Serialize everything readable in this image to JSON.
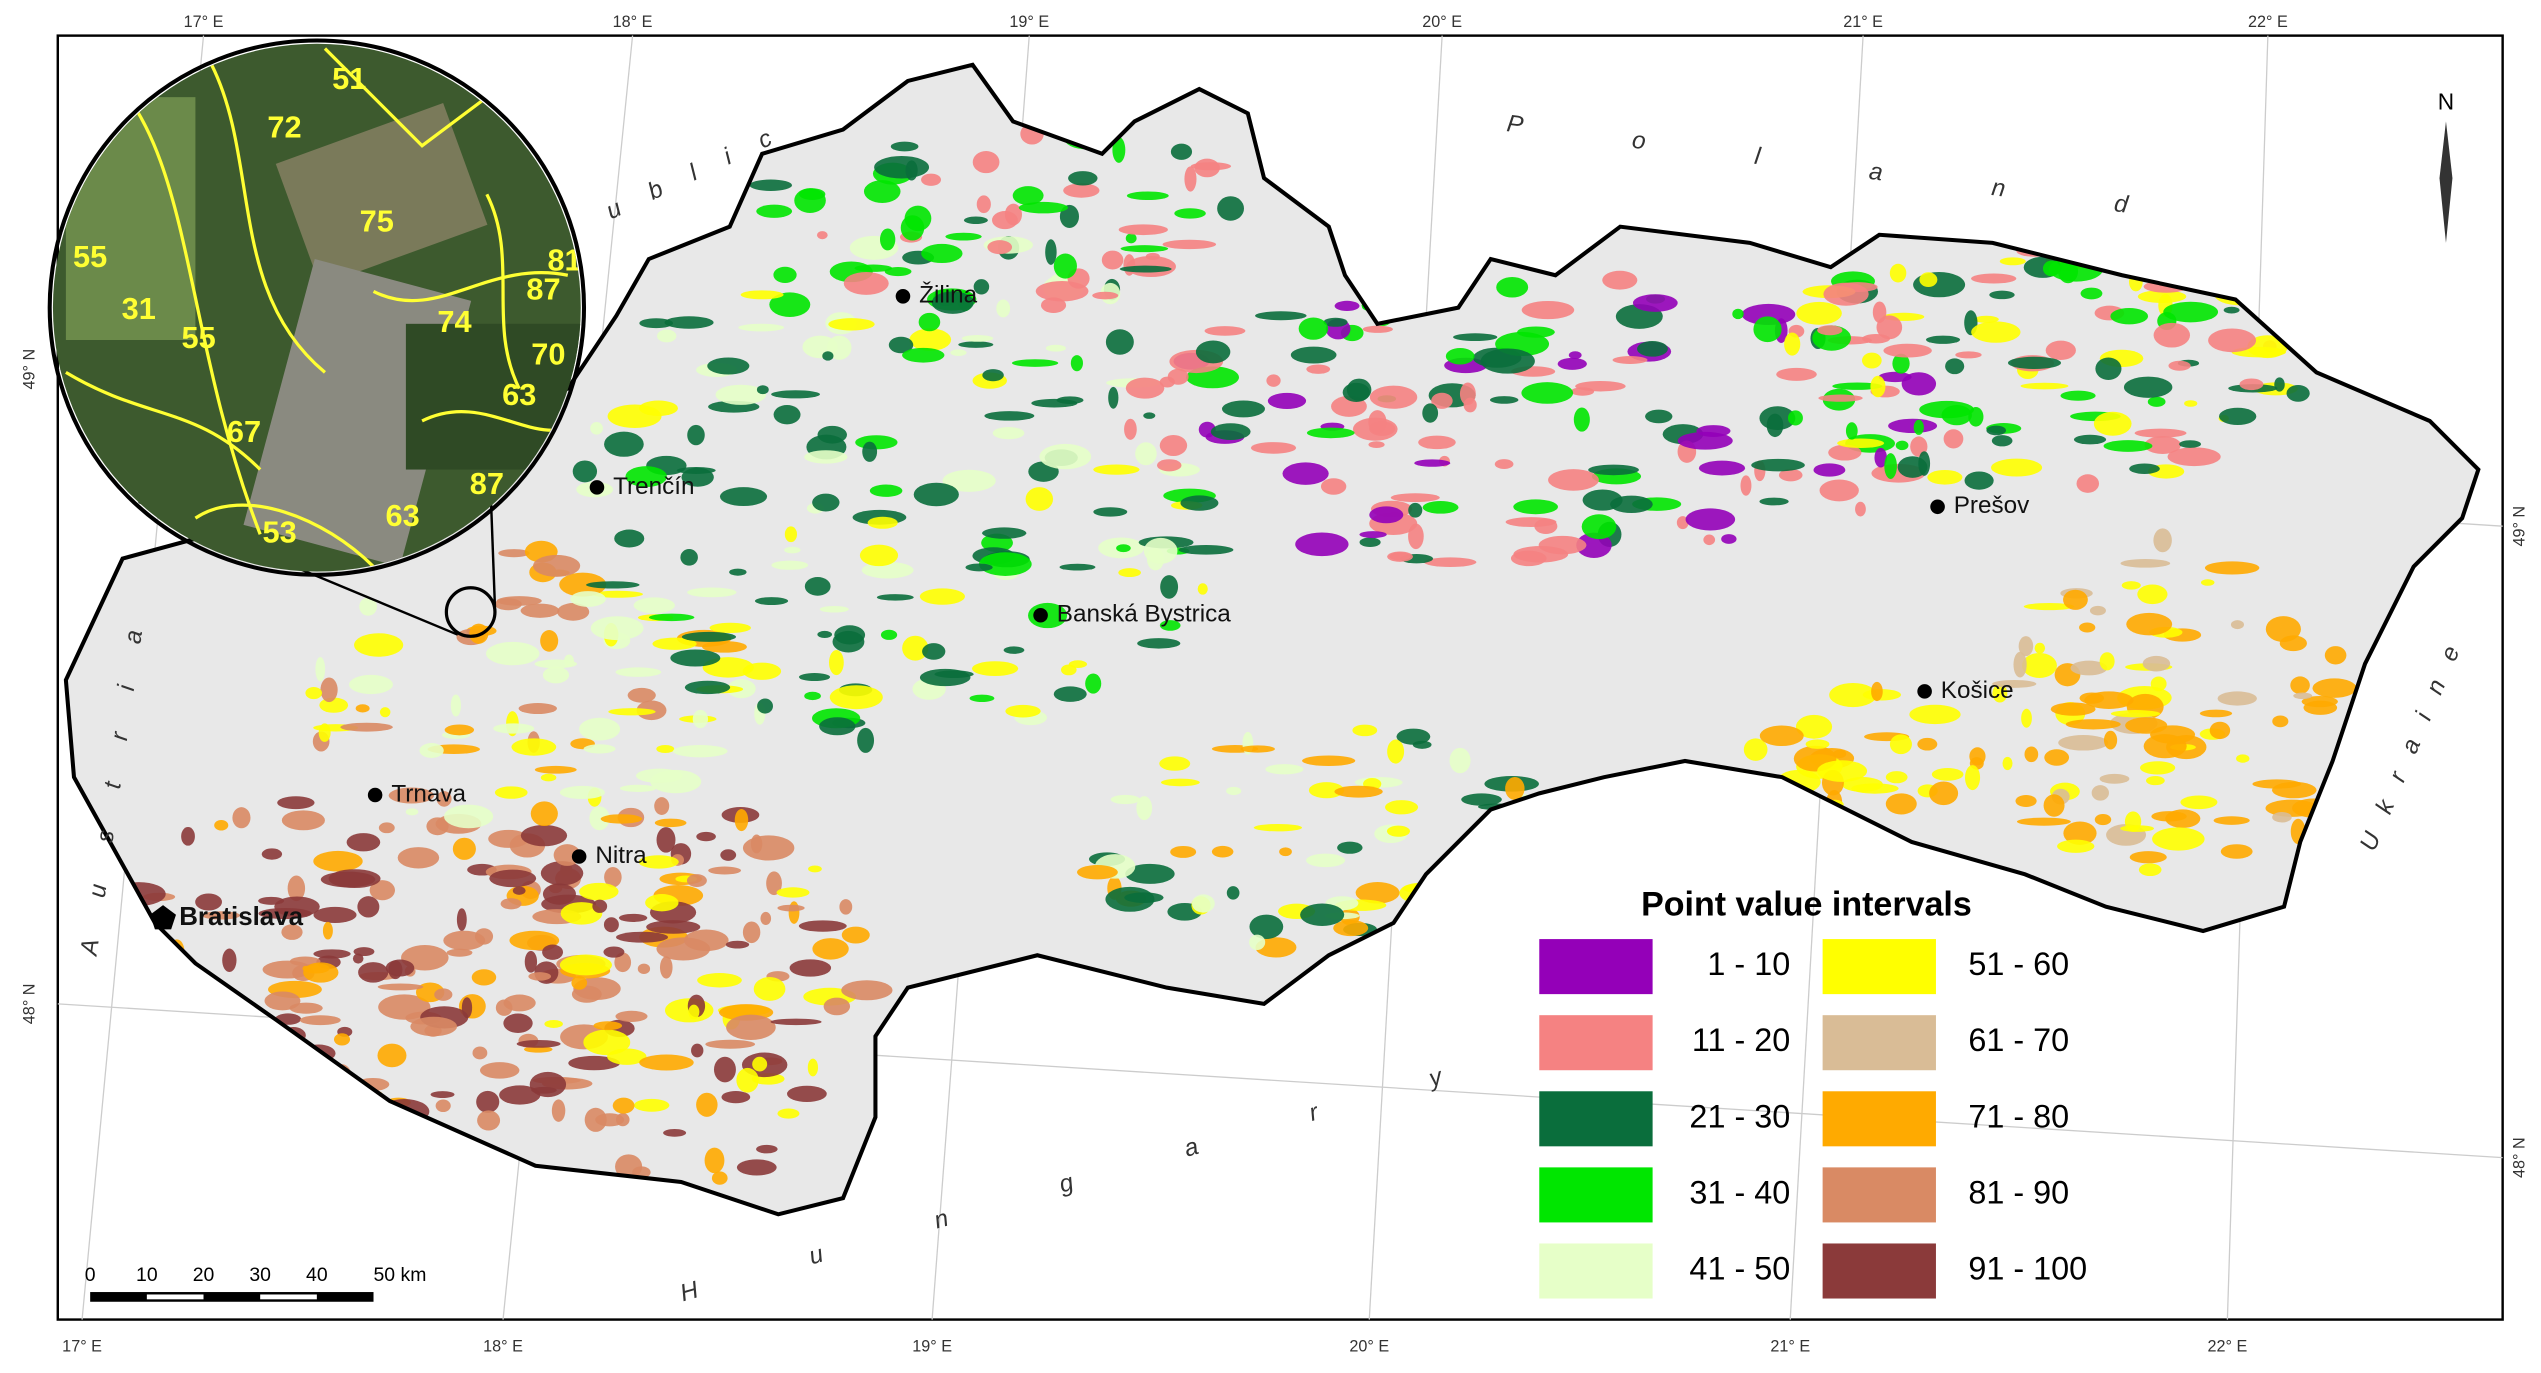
{
  "top_longitudes": [
    "17° E",
    "18° E",
    "19° E",
    "20° E",
    "21° E",
    "22° E"
  ],
  "bottom_longitudes": [
    "17° E",
    "18° E",
    "19° E",
    "20° E",
    "21° E",
    "22° E"
  ],
  "left_latitudes": [
    "49° N",
    "48° N"
  ],
  "right_latitudes": [
    "49° N",
    "48° N"
  ],
  "countries": [
    "ublic",
    "Poland",
    "Austria",
    "Ukraine",
    "Hungary"
  ],
  "cities": [
    "Žilina",
    "Trenčín",
    "Banská Bystrica",
    "Prešov",
    "Košice",
    "Trnava",
    "Nitra",
    "Bratislava"
  ],
  "north": "N",
  "inset_labels": [
    51,
    72,
    75,
    55,
    31,
    55,
    67,
    53,
    63,
    87,
    63,
    70,
    81,
    87,
    74
  ],
  "scale_bar": [
    "0",
    "10",
    "20",
    "30",
    "40",
    "50 km"
  ],
  "legend": {
    "title": "Point value intervals",
    "items": [
      {
        "label": "1 - 10",
        "color": "#9400b8"
      },
      {
        "label": "11 - 20",
        "color": "#f58282"
      },
      {
        "label": "21 - 30",
        "color": "#0a6e3c"
      },
      {
        "label": "31 - 40",
        "color": "#00e600"
      },
      {
        "label": "41 - 50",
        "color": "#e6ffc8"
      },
      {
        "label": "51 - 60",
        "color": "#ffff00"
      },
      {
        "label": "61 - 70",
        "color": "#d9bc96"
      },
      {
        "label": "71 - 80",
        "color": "#ffaa00"
      },
      {
        "label": "81 - 90",
        "color": "#d98a64"
      },
      {
        "label": "91 - 100",
        "color": "#8b3a3a"
      }
    ]
  }
}
